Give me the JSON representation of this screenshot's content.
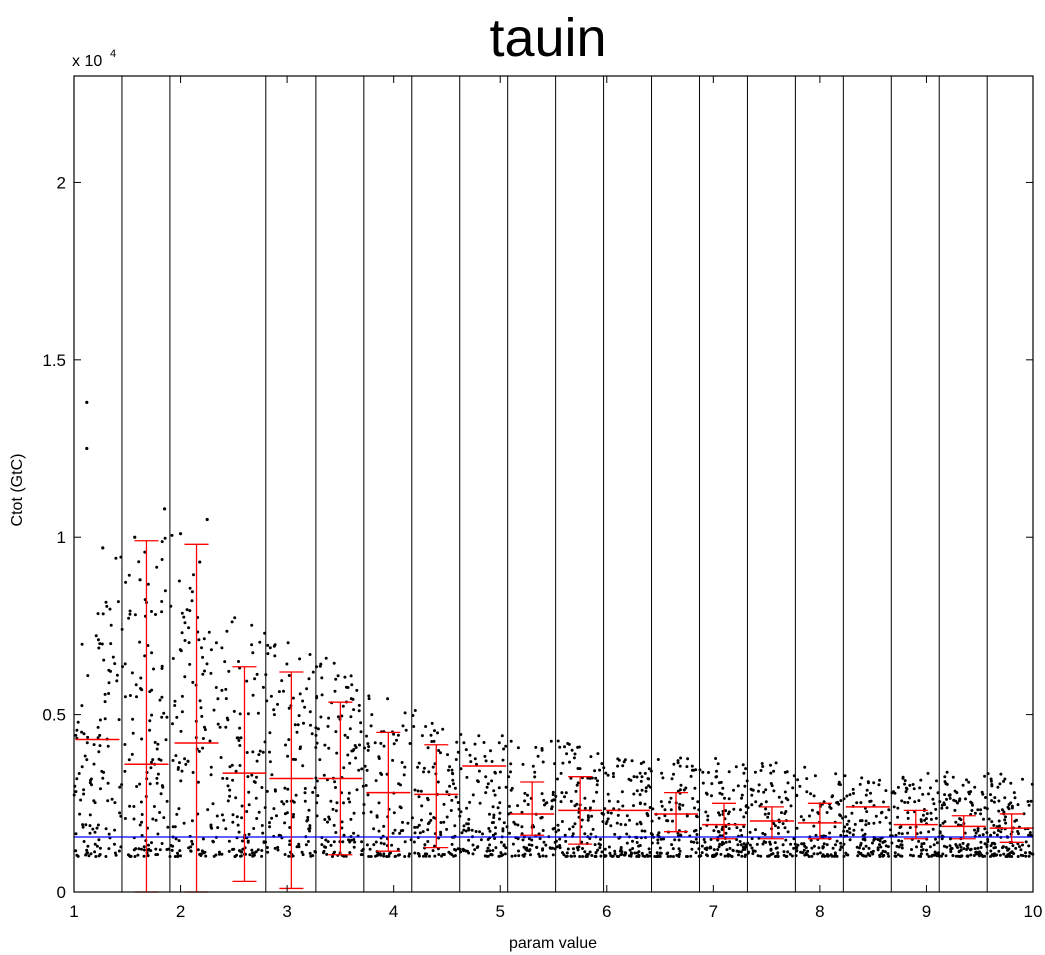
{
  "chart_data": {
    "type": "scatter",
    "title": "tauin",
    "xlabel": "param value",
    "ylabel": "Ctot (GtC)",
    "y_multiplier": {
      "base": "x 10",
      "exponent": "4"
    },
    "xlim": [
      1,
      10
    ],
    "ylim": [
      0,
      2.3
    ],
    "x_ticks": [
      "1",
      "2",
      "3",
      "4",
      "5",
      "6",
      "7",
      "8",
      "9",
      "10"
    ],
    "y_ticks": [
      "0",
      "0.5",
      "1",
      "1.5",
      "2"
    ],
    "grid": "vertical bin boundaries",
    "bin_boundaries": [
      1.45,
      1.9,
      2.8,
      3.27,
      3.72,
      4.17,
      4.62,
      5.07,
      5.52,
      5.97,
      6.42,
      6.87,
      7.32,
      7.77,
      8.22,
      8.67,
      9.12,
      9.57
    ],
    "reference_line": {
      "y": 0.155,
      "color": "#0000ff"
    },
    "colors": {
      "points": "#000000",
      "error_bars": "#ff0000",
      "reference": "#0000ff",
      "grid": "#000000"
    },
    "error_bars": [
      {
        "x": 1.22,
        "mean": 0.43,
        "low": 0.43,
        "high": 0.43
      },
      {
        "x": 1.68,
        "mean": 0.36,
        "low": 0.0,
        "high": 0.99
      },
      {
        "x": 2.15,
        "mean": 0.42,
        "low": 0.0,
        "high": 0.98
      },
      {
        "x": 2.6,
        "mean": 0.335,
        "low": 0.03,
        "high": 0.635
      },
      {
        "x": 3.04,
        "mean": 0.32,
        "low": 0.01,
        "high": 0.62
      },
      {
        "x": 3.5,
        "mean": 0.32,
        "low": 0.105,
        "high": 0.535
      },
      {
        "x": 3.95,
        "mean": 0.28,
        "low": 0.115,
        "high": 0.45
      },
      {
        "x": 4.4,
        "mean": 0.275,
        "low": 0.125,
        "high": 0.415
      },
      {
        "x": 4.85,
        "mean": 0.355,
        "low": 0.355,
        "high": 0.355
      },
      {
        "x": 5.3,
        "mean": 0.22,
        "low": 0.16,
        "high": 0.31
      },
      {
        "x": 5.75,
        "mean": 0.23,
        "low": 0.135,
        "high": 0.325
      },
      {
        "x": 6.2,
        "mean": 0.23,
        "low": 0.23,
        "high": 0.23
      },
      {
        "x": 6.65,
        "mean": 0.22,
        "low": 0.17,
        "high": 0.28
      },
      {
        "x": 7.1,
        "mean": 0.19,
        "low": 0.15,
        "high": 0.25
      },
      {
        "x": 7.55,
        "mean": 0.2,
        "low": 0.15,
        "high": 0.24
      },
      {
        "x": 8.0,
        "mean": 0.195,
        "low": 0.15,
        "high": 0.25
      },
      {
        "x": 8.45,
        "mean": 0.24,
        "low": 0.24,
        "high": 0.24
      },
      {
        "x": 8.9,
        "mean": 0.19,
        "low": 0.15,
        "high": 0.23
      },
      {
        "x": 9.35,
        "mean": 0.185,
        "low": 0.15,
        "high": 0.215
      },
      {
        "x": 9.8,
        "mean": 0.18,
        "low": 0.14,
        "high": 0.22
      }
    ],
    "scatter_envelope": [
      {
        "x": 1.0,
        "low": 0.1,
        "high": 0.85,
        "count": 70
      },
      {
        "x": 1.45,
        "low": 0.1,
        "high": 0.97,
        "count": 70
      },
      {
        "x": 1.9,
        "low": 0.1,
        "high": 1.05,
        "count": 70
      },
      {
        "x": 2.35,
        "low": 0.1,
        "high": 0.8,
        "count": 70
      },
      {
        "x": 2.8,
        "low": 0.1,
        "high": 0.74,
        "count": 70
      },
      {
        "x": 3.27,
        "low": 0.1,
        "high": 0.68,
        "count": 70
      },
      {
        "x": 3.72,
        "low": 0.1,
        "high": 0.6,
        "count": 70
      },
      {
        "x": 4.17,
        "low": 0.1,
        "high": 0.53,
        "count": 70
      },
      {
        "x": 4.62,
        "low": 0.1,
        "high": 0.46,
        "count": 70
      },
      {
        "x": 5.07,
        "low": 0.1,
        "high": 0.44,
        "count": 70
      },
      {
        "x": 5.52,
        "low": 0.1,
        "high": 0.43,
        "count": 70
      },
      {
        "x": 5.97,
        "low": 0.1,
        "high": 0.39,
        "count": 70
      },
      {
        "x": 6.42,
        "low": 0.1,
        "high": 0.38,
        "count": 70
      },
      {
        "x": 6.87,
        "low": 0.1,
        "high": 0.38,
        "count": 70
      },
      {
        "x": 7.32,
        "low": 0.1,
        "high": 0.37,
        "count": 70
      },
      {
        "x": 7.77,
        "low": 0.1,
        "high": 0.36,
        "count": 70
      },
      {
        "x": 8.22,
        "low": 0.1,
        "high": 0.33,
        "count": 70
      },
      {
        "x": 8.67,
        "low": 0.1,
        "high": 0.32,
        "count": 70
      },
      {
        "x": 9.12,
        "low": 0.1,
        "high": 0.34,
        "count": 70
      },
      {
        "x": 9.57,
        "low": 0.1,
        "high": 0.34,
        "count": 70
      },
      {
        "x": 10.0,
        "low": 0.1,
        "high": 0.33,
        "count": 70
      }
    ],
    "outliers": [
      {
        "x": 1.12,
        "y": 1.38
      },
      {
        "x": 1.12,
        "y": 1.25
      },
      {
        "x": 1.57,
        "y": 1.0
      },
      {
        "x": 1.85,
        "y": 1.08
      },
      {
        "x": 2.25,
        "y": 1.05
      },
      {
        "x": 2.0,
        "y": 1.01
      },
      {
        "x": 1.27,
        "y": 0.97
      },
      {
        "x": 1.62,
        "y": 0.88
      },
      {
        "x": 2.18,
        "y": 0.93
      }
    ]
  }
}
